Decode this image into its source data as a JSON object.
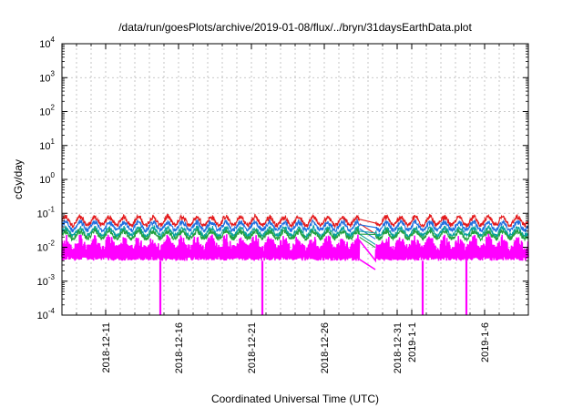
{
  "chart_data": {
    "type": "line",
    "title": "/data/run/goesPlots/archive/2019-01-08/flux/../bryn/31daysEarthData.plot",
    "xlabel": "Coordinated Universal Time (UTC)",
    "ylabel": "cGy/day",
    "yscale": "log",
    "ylim": [
      0.0001,
      10000
    ],
    "y_ticks": [
      {
        "value": 0.0001,
        "base": "10",
        "exp": "-4"
      },
      {
        "value": 0.001,
        "base": "10",
        "exp": "-3"
      },
      {
        "value": 0.01,
        "base": "10",
        "exp": "-2"
      },
      {
        "value": 0.1,
        "base": "10",
        "exp": "-1"
      },
      {
        "value": 1,
        "base": "10",
        "exp": "0"
      },
      {
        "value": 10,
        "base": "10",
        "exp": "1"
      },
      {
        "value": 100,
        "base": "10",
        "exp": "2"
      },
      {
        "value": 1000,
        "base": "10",
        "exp": "3"
      },
      {
        "value": 10000,
        "base": "10",
        "exp": "4"
      }
    ],
    "xlim": [
      "2018-12-08",
      "2019-01-09"
    ],
    "x_ticks": [
      "2018-12-11",
      "2018-12-16",
      "2018-12-21",
      "2018-12-26",
      "2018-12-31",
      "2019-1-1",
      "2019-1-6"
    ],
    "x_tick_dates": [
      "2018-12-11",
      "2018-12-16",
      "2018-12-21",
      "2018-12-26",
      "2018-12-31",
      "2019-01-01",
      "2019-01-06"
    ],
    "x_minor_grid_dates": [
      "2018-12-08",
      "2018-12-09",
      "2018-12-10",
      "2018-12-11",
      "2018-12-12",
      "2018-12-13",
      "2018-12-14",
      "2018-12-15",
      "2018-12-16",
      "2018-12-17",
      "2018-12-18",
      "2018-12-19",
      "2018-12-20",
      "2018-12-21",
      "2018-12-22",
      "2018-12-23",
      "2018-12-24",
      "2018-12-25",
      "2018-12-26",
      "2018-12-27",
      "2018-12-28",
      "2018-12-29",
      "2018-12-30",
      "2018-12-31",
      "2019-01-01",
      "2019-01-02",
      "2019-01-03",
      "2019-01-04",
      "2019-01-05",
      "2019-01-06",
      "2019-01-07",
      "2019-01-08",
      "2019-01-09"
    ],
    "grid": true,
    "data_gap": [
      "2018-12-28",
      "2018-12-29"
    ],
    "series": [
      {
        "color": "#e41a1c",
        "baseline": 0.045,
        "daily_peak": 0.085
      },
      {
        "color": "#1f6fe0",
        "baseline": 0.032,
        "daily_peak": 0.06
      },
      {
        "color": "#0aa0a0",
        "baseline": 0.022,
        "daily_peak": 0.04
      },
      {
        "color": "#20a040",
        "baseline": 0.018,
        "daily_peak": 0.032
      },
      {
        "color": "#ff00ff",
        "baseline": 0.004,
        "daily_peak": 0.025
      }
    ],
    "dropouts": [
      {
        "date": "2018-12-14",
        "series_color": "#ff00ff",
        "value": 0.0001
      },
      {
        "date": "2018-12-21",
        "series_color": "#ff00ff",
        "value": 0.0001
      },
      {
        "date": "2019-01-01",
        "series_color": "#ff00ff",
        "value": 0.0001
      },
      {
        "date": "2019-01-04",
        "series_color": "#ff00ff",
        "value": 0.0001
      }
    ]
  }
}
